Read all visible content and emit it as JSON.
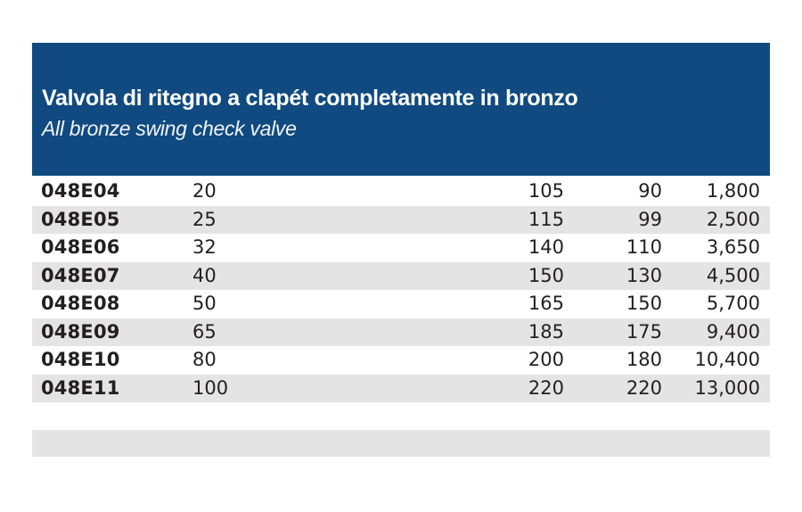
{
  "header": {
    "title_it": "Valvola di ritegno a clapét completamente in bronzo",
    "title_en": "All bronze swing check valve",
    "bg_color": "#104a80",
    "text_color": "#ffffff"
  },
  "table": {
    "stripe_color": "#e4e4e4",
    "text_color": "#231f20",
    "rows": [
      {
        "code": "048E04",
        "c2": "20",
        "c3": "105",
        "c4": "90",
        "c5": "1,800"
      },
      {
        "code": "048E05",
        "c2": "25",
        "c3": "115",
        "c4": "99",
        "c5": "2,500"
      },
      {
        "code": "048E06",
        "c2": "32",
        "c3": "140",
        "c4": "110",
        "c5": "3,650"
      },
      {
        "code": "048E07",
        "c2": "40",
        "c3": "150",
        "c4": "130",
        "c5": "4,500"
      },
      {
        "code": "048E08",
        "c2": "50",
        "c3": "165",
        "c4": "150",
        "c5": "5,700"
      },
      {
        "code": "048E09",
        "c2": "65",
        "c3": "185",
        "c4": "175",
        "c5": "9,400"
      },
      {
        "code": "048E10",
        "c2": "80",
        "c3": "200",
        "c4": "180",
        "c5": "10,400"
      },
      {
        "code": "048E11",
        "c2": "100",
        "c3": "220",
        "c4": "220",
        "c5": "13,000"
      }
    ]
  }
}
